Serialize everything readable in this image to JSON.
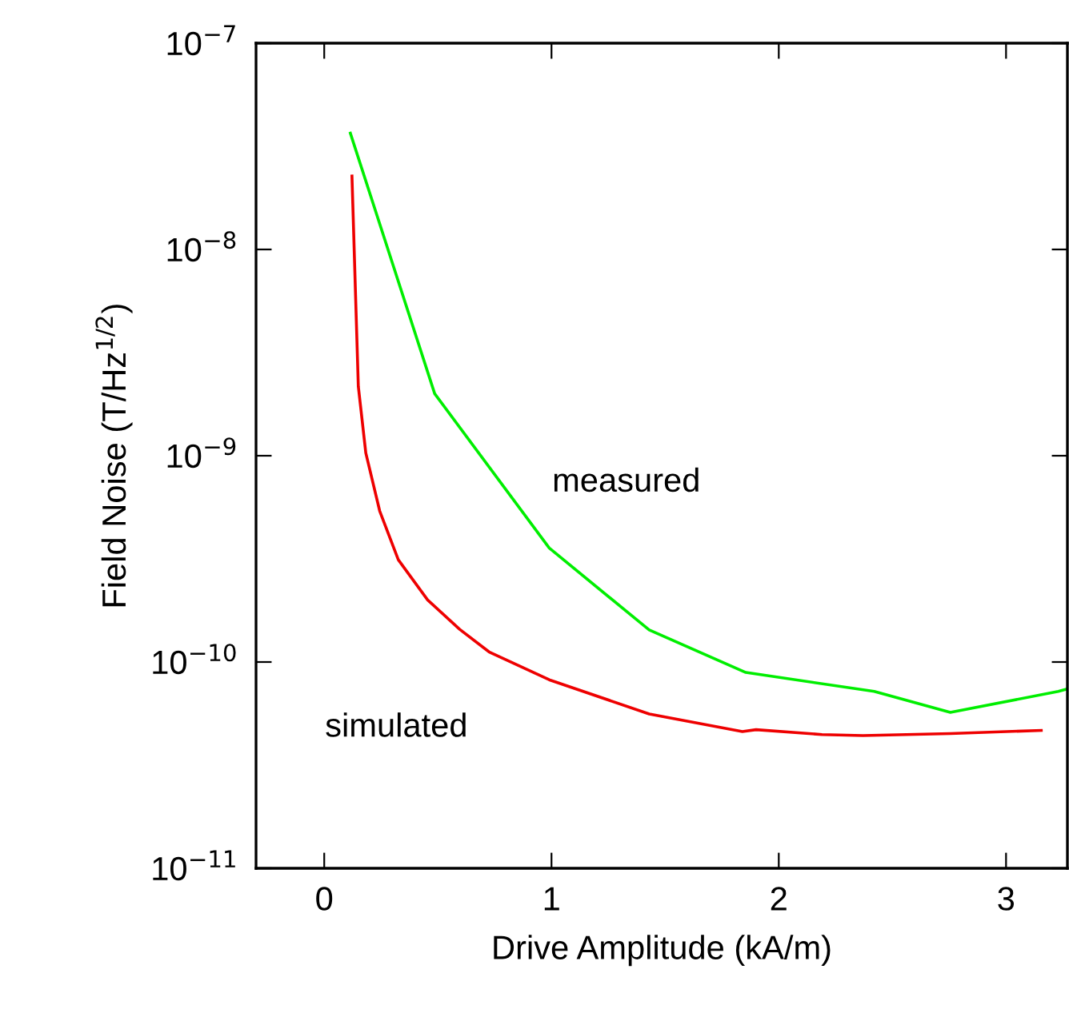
{
  "chart_data": {
    "type": "line",
    "xlabel": "Drive Amplitude (kA/m)",
    "ylabel": "Field Noise (T/Hz$^{1/2}$)",
    "log": "y",
    "xlim": [
      -0.3,
      3.27
    ],
    "xticks": [
      0,
      1,
      2,
      3
    ],
    "ylim": [
      1e-11,
      1e-07
    ],
    "yticks": [
      {
        "value": 1e-11,
        "label": "10$^{−11}$"
      },
      {
        "value": 1e-10,
        "label": "10$^{−10}$"
      },
      {
        "value": 1e-09,
        "label": "10$^{−9}$"
      },
      {
        "value": 1e-08,
        "label": "10$^{−8}$"
      },
      {
        "value": 1e-07,
        "label": "10$^{−7}$"
      }
    ],
    "grid": false,
    "marker": "none",
    "line_style": "solid",
    "series": [
      {
        "name": "measured",
        "color": "#00ee00",
        "x": [
          0.115,
          0.486,
          0.99,
          1.43,
          1.855,
          2.42,
          2.755,
          3.23,
          3.27
        ],
        "values": [
          3.66e-08,
          2e-09,
          3.57e-10,
          1.43e-10,
          8.9e-11,
          7.2e-11,
          5.7e-11,
          7.2e-11,
          7.4e-11
        ]
      },
      {
        "name": "simulated",
        "color": "#ee0000",
        "x": [
          0.122,
          0.15,
          0.183,
          0.244,
          0.326,
          0.455,
          0.596,
          0.725,
          0.99,
          1.43,
          1.84,
          1.9,
          2.19,
          2.37,
          2.755,
          3.155
        ],
        "values": [
          2.27e-08,
          2.17e-09,
          1.03e-09,
          5.4e-10,
          3.13e-10,
          2e-10,
          1.44e-10,
          1.12e-10,
          8.2e-11,
          5.6e-11,
          4.6e-11,
          4.7e-11,
          4.45e-11,
          4.4e-11,
          4.5e-11,
          4.66e-11
        ]
      }
    ]
  }
}
